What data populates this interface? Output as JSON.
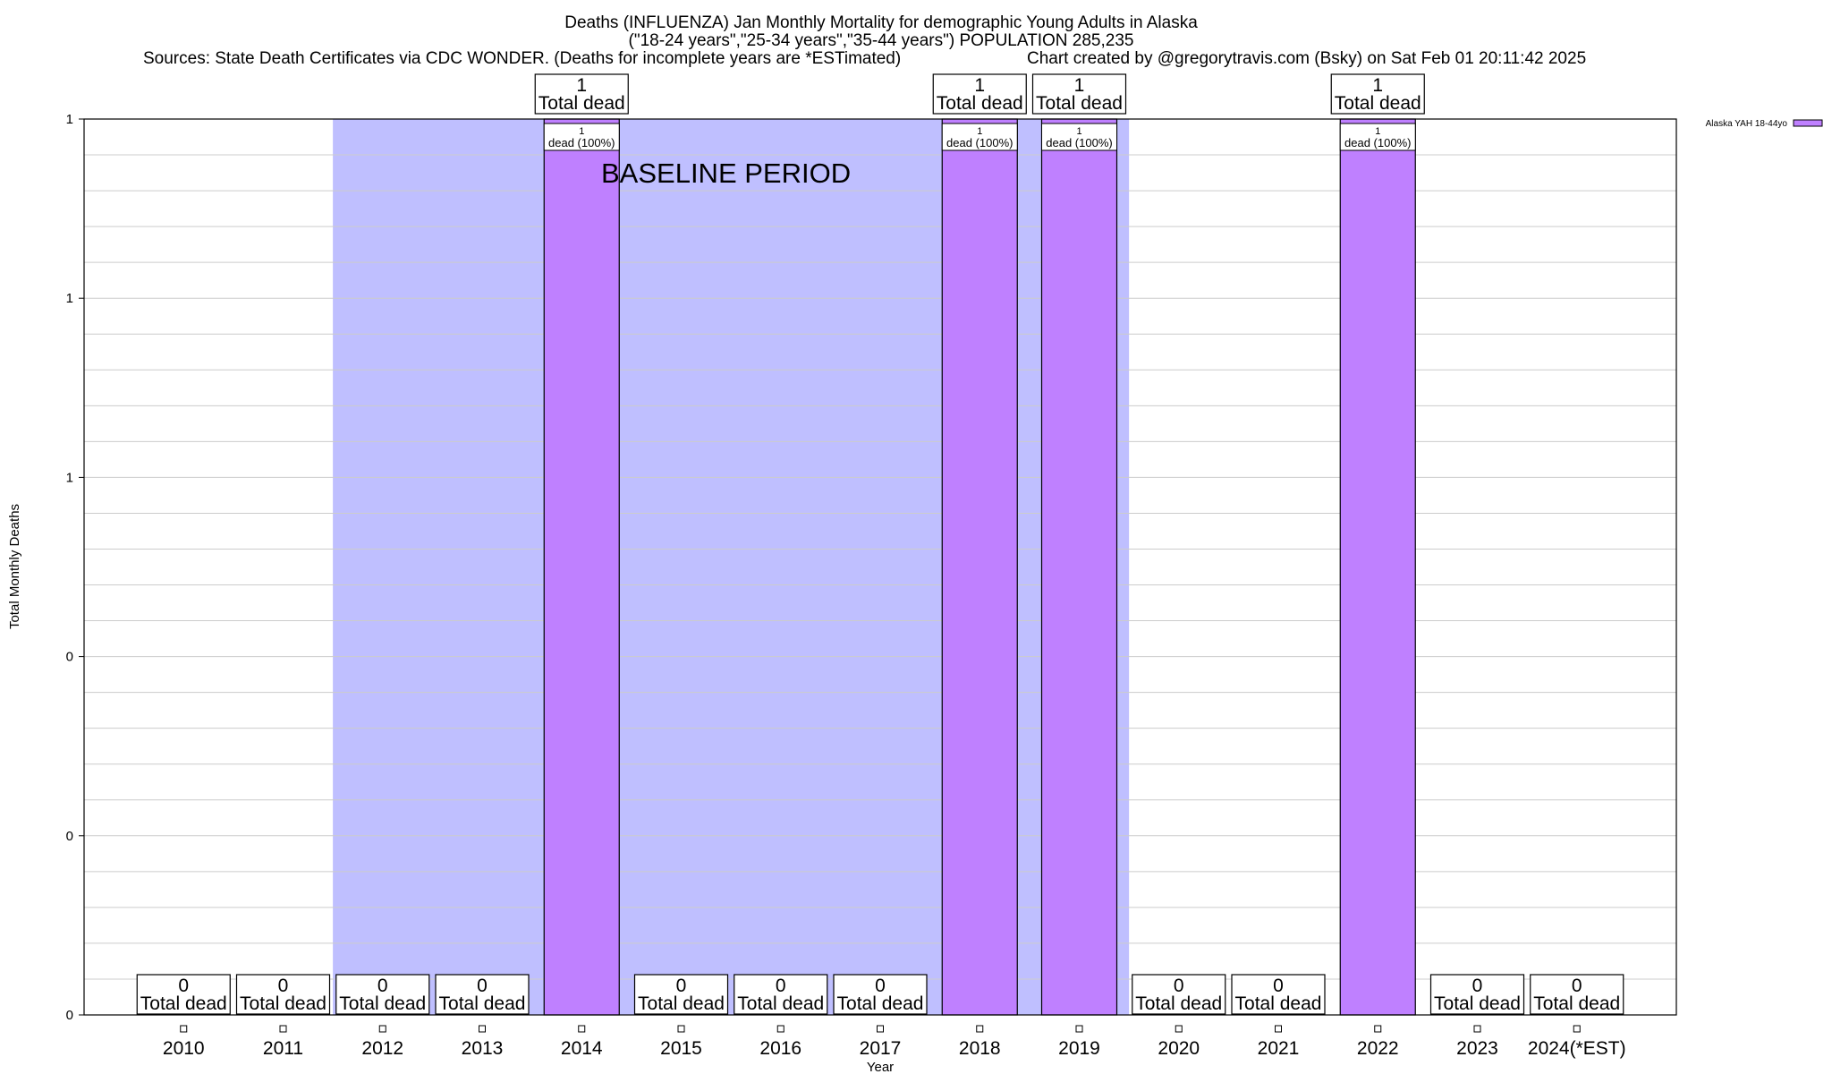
{
  "chart_data": {
    "type": "bar",
    "title_lines": [
      "Deaths (INFLUENZA) Jan Monthly Mortality for demographic Young Adults in Alaska",
      "(\"18-24 years\",\"25-34 years\",\"35-44 years\") POPULATION 285,235"
    ],
    "sources": "Sources: State Death Certificates via CDC WONDER. (Deaths for incomplete years are *ESTimated)",
    "credit": "Chart created by @gregorytravis.com (Bsky) on Sat Feb 01 20:11:42 2025",
    "xlabel": "Year",
    "ylabel": "Total Monthly Deaths",
    "ylim": [
      0,
      1
    ],
    "y_tick_labels": [
      "0",
      "0",
      "0",
      "1",
      "1",
      "1"
    ],
    "categories": [
      "2010",
      "2011",
      "2012",
      "2013",
      "2014",
      "2015",
      "2016",
      "2017",
      "2018",
      "2019",
      "2020",
      "2021",
      "2022",
      "2023",
      "2024(*EST)"
    ],
    "series": [
      {
        "name": "Alaska YAH 18-44yo",
        "values": [
          0,
          0,
          0,
          0,
          1,
          0,
          0,
          0,
          1,
          1,
          0,
          0,
          1,
          0,
          0
        ]
      }
    ],
    "total_labels": [
      "0",
      "0",
      "0",
      "0",
      "1",
      "0",
      "0",
      "0",
      "1",
      "1",
      "0",
      "0",
      "1",
      "0",
      "0"
    ],
    "total_suffix": "Total dead",
    "bar_labels": [
      {
        "category": "2014",
        "count": "1",
        "text": "dead (100%)"
      },
      {
        "category": "2018",
        "count": "1",
        "text": "dead (100%)"
      },
      {
        "category": "2019",
        "count": "1",
        "text": "dead (100%)"
      },
      {
        "category": "2022",
        "count": "1",
        "text": "dead (100%)"
      }
    ],
    "baseline": {
      "label": "BASELINE PERIOD",
      "from": "2012",
      "to": "2019"
    },
    "legend": {
      "label": "Alaska YAH 18-44yo",
      "position": "top-right"
    },
    "colors": {
      "bar": "#bf80ff",
      "baseline": "#bfbfff",
      "grid": "#cccccc"
    }
  }
}
